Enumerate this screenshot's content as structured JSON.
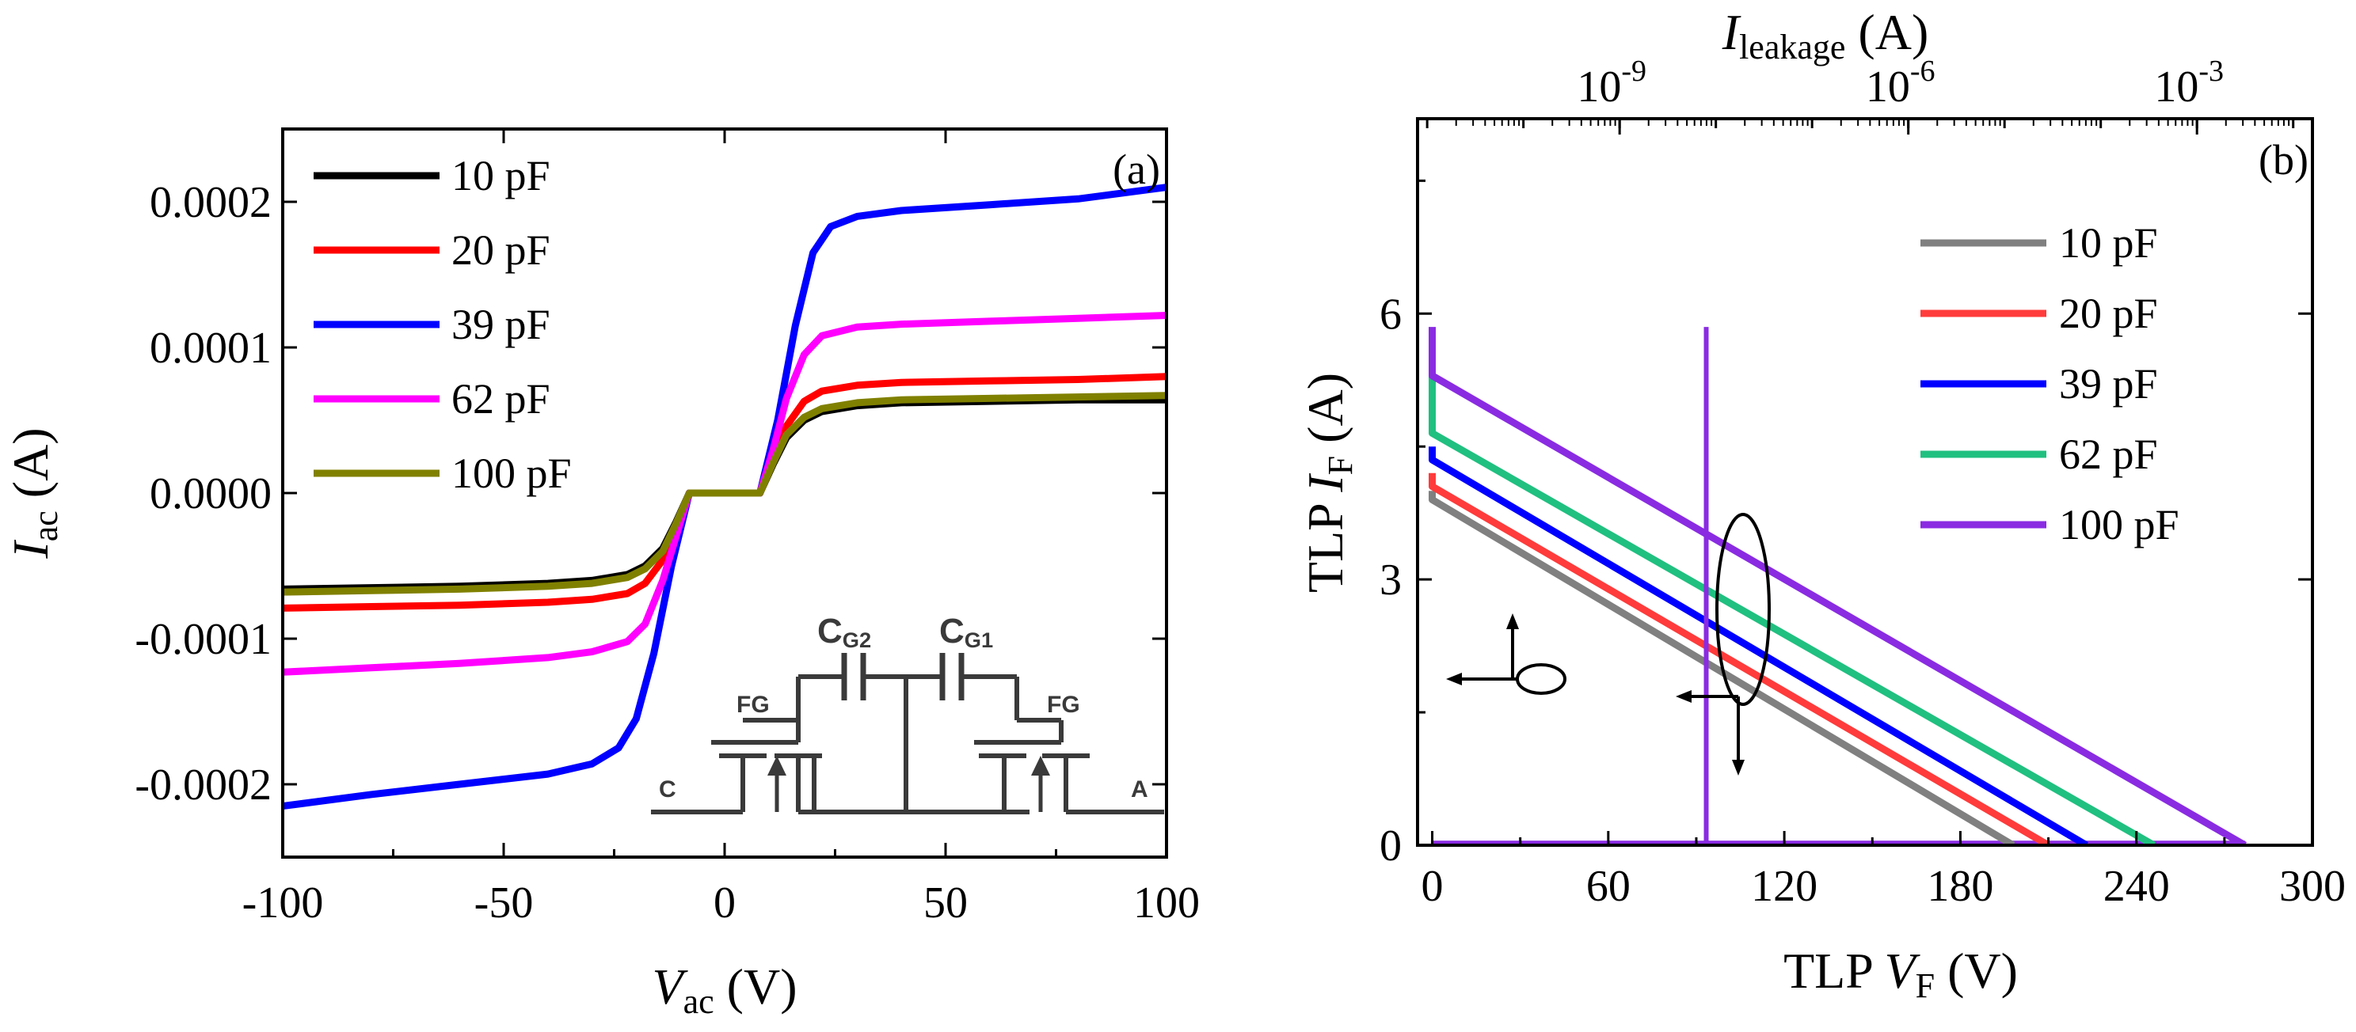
{
  "chart_data": [
    {
      "panel": "(a)",
      "type": "line",
      "xlabel_main": "V",
      "xlabel_sub": "ac",
      "xlabel_unit": " (V)",
      "ylabel_main": "I",
      "ylabel_sub": "ac",
      "ylabel_unit": " (A)",
      "xlim": [
        -100,
        100
      ],
      "ylim": [
        -0.00025,
        0.00025
      ],
      "xticks": [
        -100,
        -50,
        0,
        50,
        100
      ],
      "xtick_labels": [
        "-100",
        "-50",
        "0",
        "50",
        "100"
      ],
      "yticks": [
        -0.0002,
        -0.0001,
        0,
        0.0001,
        0.0002
      ],
      "ytick_labels": [
        "-0.0002",
        "-0.0001",
        "0.0000",
        "0.0001",
        "0.0002"
      ],
      "legend_position": "top-left",
      "series": [
        {
          "name": "10 pF",
          "color": "#000000",
          "x": [
            -100,
            -80,
            -60,
            -40,
            -30,
            -22,
            -18,
            -14,
            -11,
            -8,
            -6,
            0,
            6,
            8,
            11,
            14,
            18,
            22,
            30,
            40,
            60,
            80,
            100
          ],
          "y": [
            -6.6e-05,
            -6.5e-05,
            -6.4e-05,
            -6.2e-05,
            -6e-05,
            -5.6e-05,
            -5e-05,
            -3.8e-05,
            -2e-05,
            0,
            0,
            0,
            0,
            0,
            2e-05,
            3.8e-05,
            5e-05,
            5.6e-05,
            6e-05,
            6.2e-05,
            6.3e-05,
            6.4e-05,
            6.4e-05
          ]
        },
        {
          "name": "20 pF",
          "color": "#ff0000",
          "x": [
            -100,
            -80,
            -60,
            -40,
            -30,
            -22,
            -18,
            -14,
            -11,
            -8,
            -6,
            0,
            6,
            8,
            11,
            14,
            18,
            22,
            30,
            40,
            60,
            80,
            100
          ],
          "y": [
            -7.9e-05,
            -7.8e-05,
            -7.7e-05,
            -7.5e-05,
            -7.3e-05,
            -6.9e-05,
            -6.2e-05,
            -4.6e-05,
            -2.4e-05,
            0,
            0,
            0,
            0,
            0,
            2.4e-05,
            4.6e-05,
            6.3e-05,
            7e-05,
            7.4e-05,
            7.6e-05,
            7.7e-05,
            7.8e-05,
            8e-05
          ]
        },
        {
          "name": "39 pF",
          "color": "#0000ff",
          "x": [
            -100,
            -80,
            -60,
            -40,
            -30,
            -24,
            -20,
            -16,
            -12,
            -8,
            -6,
            0,
            6,
            8,
            12,
            16,
            20,
            24,
            30,
            40,
            60,
            80,
            100
          ],
          "y": [
            -0.000215,
            -0.000207,
            -0.0002,
            -0.000193,
            -0.000186,
            -0.000175,
            -0.000155,
            -0.00011,
            -5e-05,
            0,
            0,
            0,
            0,
            0,
            5e-05,
            0.000115,
            0.000165,
            0.000183,
            0.00019,
            0.000194,
            0.000198,
            0.000202,
            0.00021
          ]
        },
        {
          "name": "62 pF",
          "color": "#ff00ff",
          "x": [
            -100,
            -80,
            -60,
            -40,
            -30,
            -22,
            -18,
            -14,
            -11,
            -8,
            -6,
            0,
            6,
            8,
            11,
            14,
            18,
            22,
            30,
            40,
            60,
            80,
            100
          ],
          "y": [
            -0.000123,
            -0.00012,
            -0.000117,
            -0.000113,
            -0.000109,
            -0.000102,
            -9e-05,
            -6e-05,
            -3e-05,
            0,
            0,
            0,
            0,
            0,
            3e-05,
            6.5e-05,
            9.5e-05,
            0.000108,
            0.000114,
            0.000116,
            0.000118,
            0.00012,
            0.000122
          ]
        },
        {
          "name": "100 pF",
          "color": "#808000",
          "x": [
            -100,
            -80,
            -60,
            -40,
            -30,
            -22,
            -18,
            -14,
            -11,
            -8,
            -6,
            0,
            6,
            8,
            11,
            14,
            18,
            22,
            30,
            40,
            60,
            80,
            100
          ],
          "y": [
            -6.8e-05,
            -6.7e-05,
            -6.6e-05,
            -6.4e-05,
            -6.2e-05,
            -5.8e-05,
            -5.2e-05,
            -4e-05,
            -2.1e-05,
            0,
            0,
            0,
            0,
            0,
            2.1e-05,
            4e-05,
            5.2e-05,
            5.8e-05,
            6.2e-05,
            6.4e-05,
            6.5e-05,
            6.6e-05,
            6.7e-05
          ]
        }
      ],
      "inset": {
        "label_cg2_main": "C",
        "label_cg2_sub": "G2",
        "label_cg1_main": "C",
        "label_cg1_sub": "G1",
        "label_fg_left": "FG",
        "label_fg_right": "FG",
        "label_c": "C",
        "label_a": "A"
      }
    },
    {
      "panel": "(b)",
      "type": "line",
      "xlabel_prefix": "TLP ",
      "xlabel_main": "V",
      "xlabel_sub": "F",
      "xlabel_unit": " (V)",
      "ylabel_prefix": "TLP ",
      "ylabel_main": "I",
      "ylabel_sub": "F",
      "ylabel_unit": " (A)",
      "top_xlabel_main": "I",
      "top_xlabel_sub": "leakage",
      "top_xlabel_unit": " (A)",
      "xlim": [
        -5,
        300
      ],
      "ylim": [
        0,
        8.2
      ],
      "xticks": [
        0,
        60,
        120,
        180,
        240,
        300
      ],
      "xtick_labels": [
        "0",
        "60",
        "120",
        "180",
        "240",
        "300"
      ],
      "yticks": [
        0,
        3,
        6
      ],
      "ytick_labels": [
        "0",
        "3",
        "6"
      ],
      "top_xticks_log": [
        -9,
        -6,
        -3
      ],
      "top_xlim_log": [
        -11.1,
        -1.8
      ],
      "top_xtick_labels": [
        "10",
        "10",
        "10"
      ],
      "top_xtick_exponents": [
        "-9",
        "-6",
        "-3"
      ],
      "legend_position": "upper-right",
      "series": [
        {
          "name": "10 pF",
          "color": "#808080",
          "x": [
            0,
            0,
            198
          ],
          "y": [
            4.0,
            3.9,
            0
          ]
        },
        {
          "name": "20 pF",
          "color": "#ff3b3b",
          "x": [
            0,
            0,
            210
          ],
          "y": [
            4.2,
            4.05,
            0
          ]
        },
        {
          "name": "39 pF",
          "color": "#0000ff",
          "x": [
            0,
            0,
            223
          ],
          "y": [
            4.5,
            4.35,
            0
          ]
        },
        {
          "name": "62 pF",
          "color": "#20c080",
          "x": [
            0,
            0,
            246
          ],
          "y": [
            5.75,
            4.65,
            0
          ]
        },
        {
          "name": "100 pF",
          "color": "#8a2be2",
          "x": [
            0,
            0,
            277
          ],
          "y": [
            5.85,
            5.3,
            0
          ]
        }
      ],
      "leakage_line": {
        "color": "#8a2be2",
        "x_log": -8.1,
        "ymax": 5.85
      },
      "baseline": {
        "color": "#8a2be2",
        "y": 0.02
      }
    }
  ]
}
